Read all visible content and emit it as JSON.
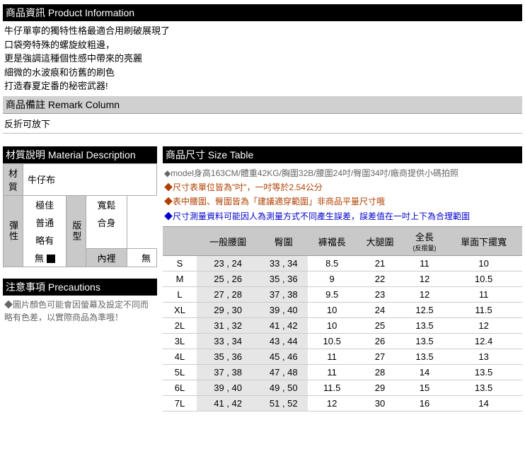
{
  "productInfo": {
    "header": "商品資訊 Product Information",
    "lines": [
      "牛仔單寧的獨特性格最適合用刷破展現了",
      "口袋旁特殊的螺旋紋粗邊，",
      "更是強調這種個性感中帶來的亮麗",
      "細微的水波痕和彷舊的刷色",
      "打造春夏定番的秘密武器!"
    ]
  },
  "remark": {
    "header": "商品備註 Remark Column",
    "text": "反折可放下"
  },
  "material": {
    "header": "材質說明 Material Description",
    "matLabel": "材質",
    "matValue": "牛仔布",
    "stretchLabel": "彈性",
    "typeLabel": "版型",
    "liningLabel": "內裡",
    "stretchOpts": [
      "極佳",
      "普通",
      "略有",
      "無"
    ],
    "typeOpts": [
      "寬鬆",
      "合身"
    ],
    "liningValue": "無"
  },
  "precautions": {
    "header": "注意事項 Precautions",
    "text": "◆圖片顏色可能會因螢幕及設定不同而略有色差，以實際商品為準哦！"
  },
  "sizeTable": {
    "header": "商品尺寸 Size Table",
    "notes": [
      {
        "cls": "note-gray",
        "text": "model身高163CM/體重42KG/胸圍32B/腰圍24吋/臀圍34吋/廠商提供小碼拍照"
      },
      {
        "cls": "note-red",
        "text": "尺寸表單位皆為\"吋\"，一吋等於2.54公分"
      },
      {
        "cls": "note-red",
        "text": "表中腰圍、臀圍皆為「建議適穿範圍」非商品平量尺寸哦"
      },
      {
        "cls": "note-blue",
        "text": "尺寸測量資料可能因人為測量方式不同產生誤差，誤差值在一吋上下為合理範圍"
      }
    ],
    "columns": [
      "",
      "一般腰圍",
      "臀圍",
      "褲襠長",
      "大腿圍",
      "全長",
      "單面下擺寬"
    ],
    "colSub": [
      "",
      "",
      "",
      "",
      "",
      "(反摺量)",
      ""
    ],
    "rows": [
      {
        "sz": "S",
        "waist": "23 , 24",
        "hip": "33 , 34",
        "crotch": "8.5",
        "thigh": "21",
        "len": "11",
        "hem": "10"
      },
      {
        "sz": "M",
        "waist": "25 , 26",
        "hip": "35 , 36",
        "crotch": "9",
        "thigh": "22",
        "len": "12",
        "hem": "10.5"
      },
      {
        "sz": "L",
        "waist": "27 , 28",
        "hip": "37 , 38",
        "crotch": "9.5",
        "thigh": "23",
        "len": "12",
        "hem": "11"
      },
      {
        "sz": "XL",
        "waist": "29 , 30",
        "hip": "39 , 40",
        "crotch": "10",
        "thigh": "24",
        "len": "12.5",
        "hem": "11.5"
      },
      {
        "sz": "2L",
        "waist": "31 , 32",
        "hip": "41 , 42",
        "crotch": "10",
        "thigh": "25",
        "len": "13.5",
        "hem": "12"
      },
      {
        "sz": "3L",
        "waist": "33 , 34",
        "hip": "43 , 44",
        "crotch": "10.5",
        "thigh": "26",
        "len": "13.5",
        "hem": "12.4"
      },
      {
        "sz": "4L",
        "waist": "35 , 36",
        "hip": "45 , 46",
        "crotch": "11",
        "thigh": "27",
        "len": "13.5",
        "hem": "13"
      },
      {
        "sz": "5L",
        "waist": "37 , 38",
        "hip": "47 , 48",
        "crotch": "11",
        "thigh": "28",
        "len": "14",
        "hem": "13.5"
      },
      {
        "sz": "6L",
        "waist": "39 , 40",
        "hip": "49 , 50",
        "crotch": "11.5",
        "thigh": "29",
        "len": "15",
        "hem": "13.5"
      },
      {
        "sz": "7L",
        "waist": "41 , 42",
        "hip": "51 , 52",
        "crotch": "12",
        "thigh": "30",
        "len": "16",
        "hem": "14"
      }
    ]
  }
}
